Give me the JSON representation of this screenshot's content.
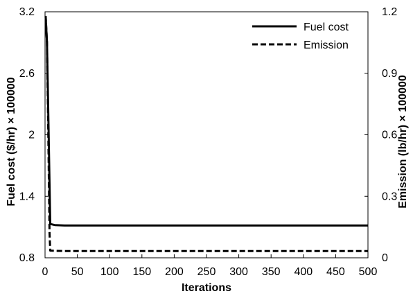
{
  "chart_data": {
    "type": "line",
    "xlabel": "Iterations",
    "ylabel_left": "Fuel cost ($/hr) × 100000",
    "ylabel_right": "Emission (lb/hr) × 100000",
    "xlim": [
      0,
      500
    ],
    "ylim_left": [
      0.8,
      3.2
    ],
    "ylim_right": [
      0,
      1.2
    ],
    "xticks": [
      0,
      50,
      100,
      150,
      200,
      250,
      300,
      350,
      400,
      450,
      500
    ],
    "yticks_left": [
      0.8,
      1.4,
      2,
      2.6,
      3.2
    ],
    "yticks_right": [
      0,
      0.3,
      0.6,
      0.9,
      1.2
    ],
    "grid": false,
    "legend_position": "top-right",
    "series": [
      {
        "name": "Fuel cost",
        "axis": "left",
        "style": "solid",
        "color": "#000000",
        "x": [
          1,
          3,
          5,
          8,
          15,
          30,
          60,
          100,
          200,
          300,
          400,
          500
        ],
        "y": [
          3.15,
          2.9,
          2.2,
          1.13,
          1.12,
          1.115,
          1.115,
          1.115,
          1.115,
          1.115,
          1.115,
          1.115
        ]
      },
      {
        "name": "Emission",
        "axis": "right",
        "style": "dashed",
        "color": "#000000",
        "x": [
          1,
          3,
          5,
          7,
          8,
          15,
          30,
          100,
          200,
          300,
          400,
          500
        ],
        "y": [
          1.18,
          1.05,
          0.6,
          0.12,
          0.035,
          0.034,
          0.033,
          0.033,
          0.033,
          0.033,
          0.033,
          0.033
        ]
      }
    ]
  }
}
